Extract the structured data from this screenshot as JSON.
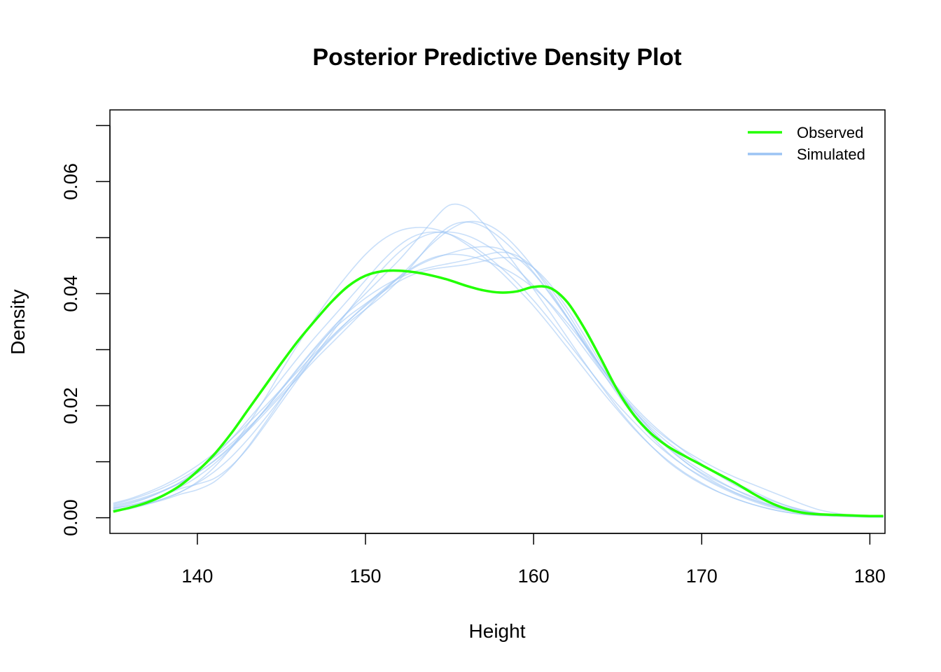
{
  "chart_data": {
    "type": "line",
    "title": "Posterior Predictive Density Plot",
    "xlabel": "Height",
    "ylabel": "Density",
    "xlim": [
      134.8,
      180.9
    ],
    "ylim": [
      -0.0028,
      0.0728
    ],
    "x_ticks": [
      140,
      150,
      160,
      170,
      180
    ],
    "y_ticks": [
      0.0,
      0.01,
      0.02,
      0.03,
      0.04,
      0.05,
      0.06,
      0.07
    ],
    "y_tick_labels": {
      "0": "0.00",
      "0.02": "0.02",
      "0.04": "0.04",
      "0.06": "0.06"
    },
    "x": [
      135,
      136,
      137,
      138,
      139,
      140,
      141,
      142,
      143,
      144,
      145,
      146,
      147,
      148,
      149,
      150,
      151,
      152,
      153,
      154,
      155,
      156,
      157,
      158,
      159,
      160,
      161,
      162,
      163,
      164,
      165,
      166,
      167,
      168,
      169,
      170,
      171,
      172,
      173,
      174,
      175,
      176,
      177,
      178,
      179,
      180,
      180.8
    ],
    "legend": {
      "position": "top-right",
      "entries": [
        {
          "label": "Observed",
          "color": "#22ff00"
        },
        {
          "label": "Simulated",
          "color": "#9cc4f4"
        }
      ]
    },
    "series": [
      {
        "name": "Observed",
        "color": "#22ff00",
        "values": [
          0.0011,
          0.0018,
          0.0027,
          0.004,
          0.0058,
          0.0083,
          0.0113,
          0.015,
          0.0192,
          0.0234,
          0.0276,
          0.0316,
          0.0352,
          0.0386,
          0.0414,
          0.0432,
          0.044,
          0.0441,
          0.0438,
          0.0432,
          0.0424,
          0.0414,
          0.0406,
          0.0402,
          0.0404,
          0.0412,
          0.041,
          0.0385,
          0.0339,
          0.0284,
          0.0227,
          0.0182,
          0.015,
          0.0127,
          0.011,
          0.0094,
          0.0078,
          0.0062,
          0.0044,
          0.0028,
          0.0016,
          0.0009,
          0.0006,
          0.0005,
          0.0004,
          0.0003,
          0.0003
        ]
      },
      {
        "values": [
          0.0018,
          0.0025,
          0.0035,
          0.0048,
          0.0064,
          0.0085,
          0.011,
          0.014,
          0.0174,
          0.021,
          0.0248,
          0.0286,
          0.0322,
          0.0356,
          0.039,
          0.0424,
          0.0458,
          0.0486,
          0.0504,
          0.051,
          0.0506,
          0.0492,
          0.0472,
          0.0448,
          0.042,
          0.0388,
          0.0352,
          0.0314,
          0.0276,
          0.0238,
          0.0202,
          0.017,
          0.014,
          0.0114,
          0.0092,
          0.0074,
          0.0058,
          0.0044,
          0.0032,
          0.0022,
          0.0014,
          0.0009,
          0.0006,
          0.0004,
          0.0003,
          0.0002,
          0.0002
        ]
      },
      {
        "values": [
          0.0012,
          0.0016,
          0.0024,
          0.0034,
          0.0046,
          0.0064,
          0.009,
          0.0124,
          0.0166,
          0.0212,
          0.0262,
          0.031,
          0.0356,
          0.0398,
          0.0436,
          0.047,
          0.0496,
          0.0512,
          0.0518,
          0.0516,
          0.0506,
          0.0488,
          0.0466,
          0.044,
          0.041,
          0.0378,
          0.0342,
          0.0304,
          0.0266,
          0.0228,
          0.0192,
          0.0158,
          0.0128,
          0.0102,
          0.008,
          0.0062,
          0.0046,
          0.0034,
          0.0024,
          0.0016,
          0.001,
          0.0006,
          0.0004,
          0.0003,
          0.0002,
          0.0002,
          0.0002
        ]
      },
      {
        "values": [
          0.0014,
          0.0018,
          0.0024,
          0.0032,
          0.0042,
          0.005,
          0.0064,
          0.009,
          0.0126,
          0.0168,
          0.0212,
          0.0256,
          0.0298,
          0.0336,
          0.037,
          0.04,
          0.043,
          0.046,
          0.0494,
          0.053,
          0.0558,
          0.0554,
          0.0526,
          0.0488,
          0.0448,
          0.0408,
          0.0366,
          0.0322,
          0.0278,
          0.0236,
          0.0196,
          0.016,
          0.0128,
          0.01,
          0.0078,
          0.006,
          0.0046,
          0.0034,
          0.0024,
          0.0016,
          0.001,
          0.0006,
          0.0004,
          0.0003,
          0.0002,
          0.0002,
          0.0002
        ]
      },
      {
        "values": [
          0.002,
          0.0027,
          0.0036,
          0.0048,
          0.0062,
          0.008,
          0.0102,
          0.0128,
          0.0158,
          0.0192,
          0.0228,
          0.0266,
          0.0302,
          0.0334,
          0.036,
          0.0382,
          0.0404,
          0.043,
          0.046,
          0.049,
          0.0514,
          0.0528,
          0.0526,
          0.051,
          0.0482,
          0.0446,
          0.0404,
          0.0358,
          0.031,
          0.0264,
          0.022,
          0.018,
          0.0146,
          0.0116,
          0.0092,
          0.0072,
          0.0056,
          0.0042,
          0.003,
          0.002,
          0.0013,
          0.0008,
          0.0005,
          0.0004,
          0.0003,
          0.0002,
          0.0002
        ]
      },
      {
        "values": [
          0.0016,
          0.0022,
          0.003,
          0.0041,
          0.0055,
          0.0073,
          0.0096,
          0.0124,
          0.0156,
          0.0192,
          0.023,
          0.0268,
          0.0304,
          0.0338,
          0.0368,
          0.0392,
          0.0412,
          0.0428,
          0.044,
          0.0448,
          0.0454,
          0.046,
          0.0468,
          0.0474,
          0.0468,
          0.0446,
          0.041,
          0.0366,
          0.0318,
          0.027,
          0.0226,
          0.0186,
          0.0152,
          0.0124,
          0.01,
          0.008,
          0.0064,
          0.005,
          0.0038,
          0.0028,
          0.0019,
          0.0012,
          0.0007,
          0.0004,
          0.0002,
          0.0001,
          0.0001
        ]
      },
      {
        "values": [
          0.0026,
          0.0034,
          0.0045,
          0.0058,
          0.0074,
          0.0093,
          0.0115,
          0.014,
          0.0168,
          0.0198,
          0.023,
          0.0262,
          0.0294,
          0.0324,
          0.0352,
          0.0378,
          0.0402,
          0.0422,
          0.0436,
          0.0444,
          0.0448,
          0.0452,
          0.0458,
          0.0464,
          0.0462,
          0.0446,
          0.0416,
          0.0374,
          0.0326,
          0.0276,
          0.023,
          0.019,
          0.0156,
          0.0128,
          0.0104,
          0.0084,
          0.0066,
          0.005,
          0.0036,
          0.0024,
          0.0015,
          0.0009,
          0.0006,
          0.0004,
          0.0003,
          0.0002,
          0.0002
        ]
      },
      {
        "values": [
          0.0022,
          0.0029,
          0.0038,
          0.0049,
          0.0063,
          0.008,
          0.0101,
          0.0126,
          0.0155,
          0.0186,
          0.0218,
          0.025,
          0.0282,
          0.0312,
          0.0342,
          0.0372,
          0.0402,
          0.0428,
          0.0448,
          0.0462,
          0.0472,
          0.048,
          0.0484,
          0.048,
          0.0464,
          0.0436,
          0.0398,
          0.0356,
          0.0312,
          0.0268,
          0.0228,
          0.0194,
          0.0164,
          0.014,
          0.012,
          0.0102,
          0.0086,
          0.0072,
          0.006,
          0.0048,
          0.0036,
          0.0024,
          0.0014,
          0.0008,
          0.0004,
          0.0002,
          0.0001
        ]
      },
      {
        "values": [
          0.0013,
          0.0018,
          0.0025,
          0.0034,
          0.0046,
          0.0062,
          0.0082,
          0.0108,
          0.014,
          0.0176,
          0.0214,
          0.0252,
          0.0288,
          0.032,
          0.0348,
          0.0372,
          0.0396,
          0.0424,
          0.0458,
          0.0494,
          0.052,
          0.0528,
          0.052,
          0.05,
          0.0472,
          0.0438,
          0.04,
          0.0358,
          0.0314,
          0.027,
          0.0228,
          0.019,
          0.0156,
          0.0126,
          0.01,
          0.0078,
          0.006,
          0.0045,
          0.0033,
          0.0023,
          0.0015,
          0.0009,
          0.0006,
          0.0004,
          0.0003,
          0.0002,
          0.0002
        ]
      },
      {
        "values": [
          0.0024,
          0.0032,
          0.0042,
          0.0054,
          0.0069,
          0.0087,
          0.0108,
          0.0132,
          0.016,
          0.019,
          0.0222,
          0.0256,
          0.029,
          0.0322,
          0.0352,
          0.038,
          0.0406,
          0.043,
          0.045,
          0.0464,
          0.047,
          0.0468,
          0.046,
          0.0448,
          0.0432,
          0.041,
          0.0382,
          0.0348,
          0.031,
          0.027,
          0.0232,
          0.0198,
          0.0168,
          0.0142,
          0.0118,
          0.0096,
          0.0076,
          0.0058,
          0.0044,
          0.0032,
          0.0022,
          0.0014,
          0.0008,
          0.0005,
          0.0003,
          0.0002,
          0.0002
        ]
      },
      {
        "values": [
          0.0017,
          0.0022,
          0.003,
          0.004,
          0.0052,
          0.006,
          0.007,
          0.0092,
          0.0124,
          0.0164,
          0.0206,
          0.0248,
          0.029,
          0.033,
          0.037,
          0.0408,
          0.0444,
          0.0474,
          0.0496,
          0.0508,
          0.051,
          0.0504,
          0.049,
          0.047,
          0.0444,
          0.0414,
          0.038,
          0.0342,
          0.0302,
          0.0262,
          0.0224,
          0.019,
          0.016,
          0.0134,
          0.0112,
          0.0094,
          0.0078,
          0.0062,
          0.0048,
          0.0034,
          0.0022,
          0.0013,
          0.0007,
          0.0004,
          0.0002,
          0.0001,
          0.0001
        ]
      }
    ]
  }
}
